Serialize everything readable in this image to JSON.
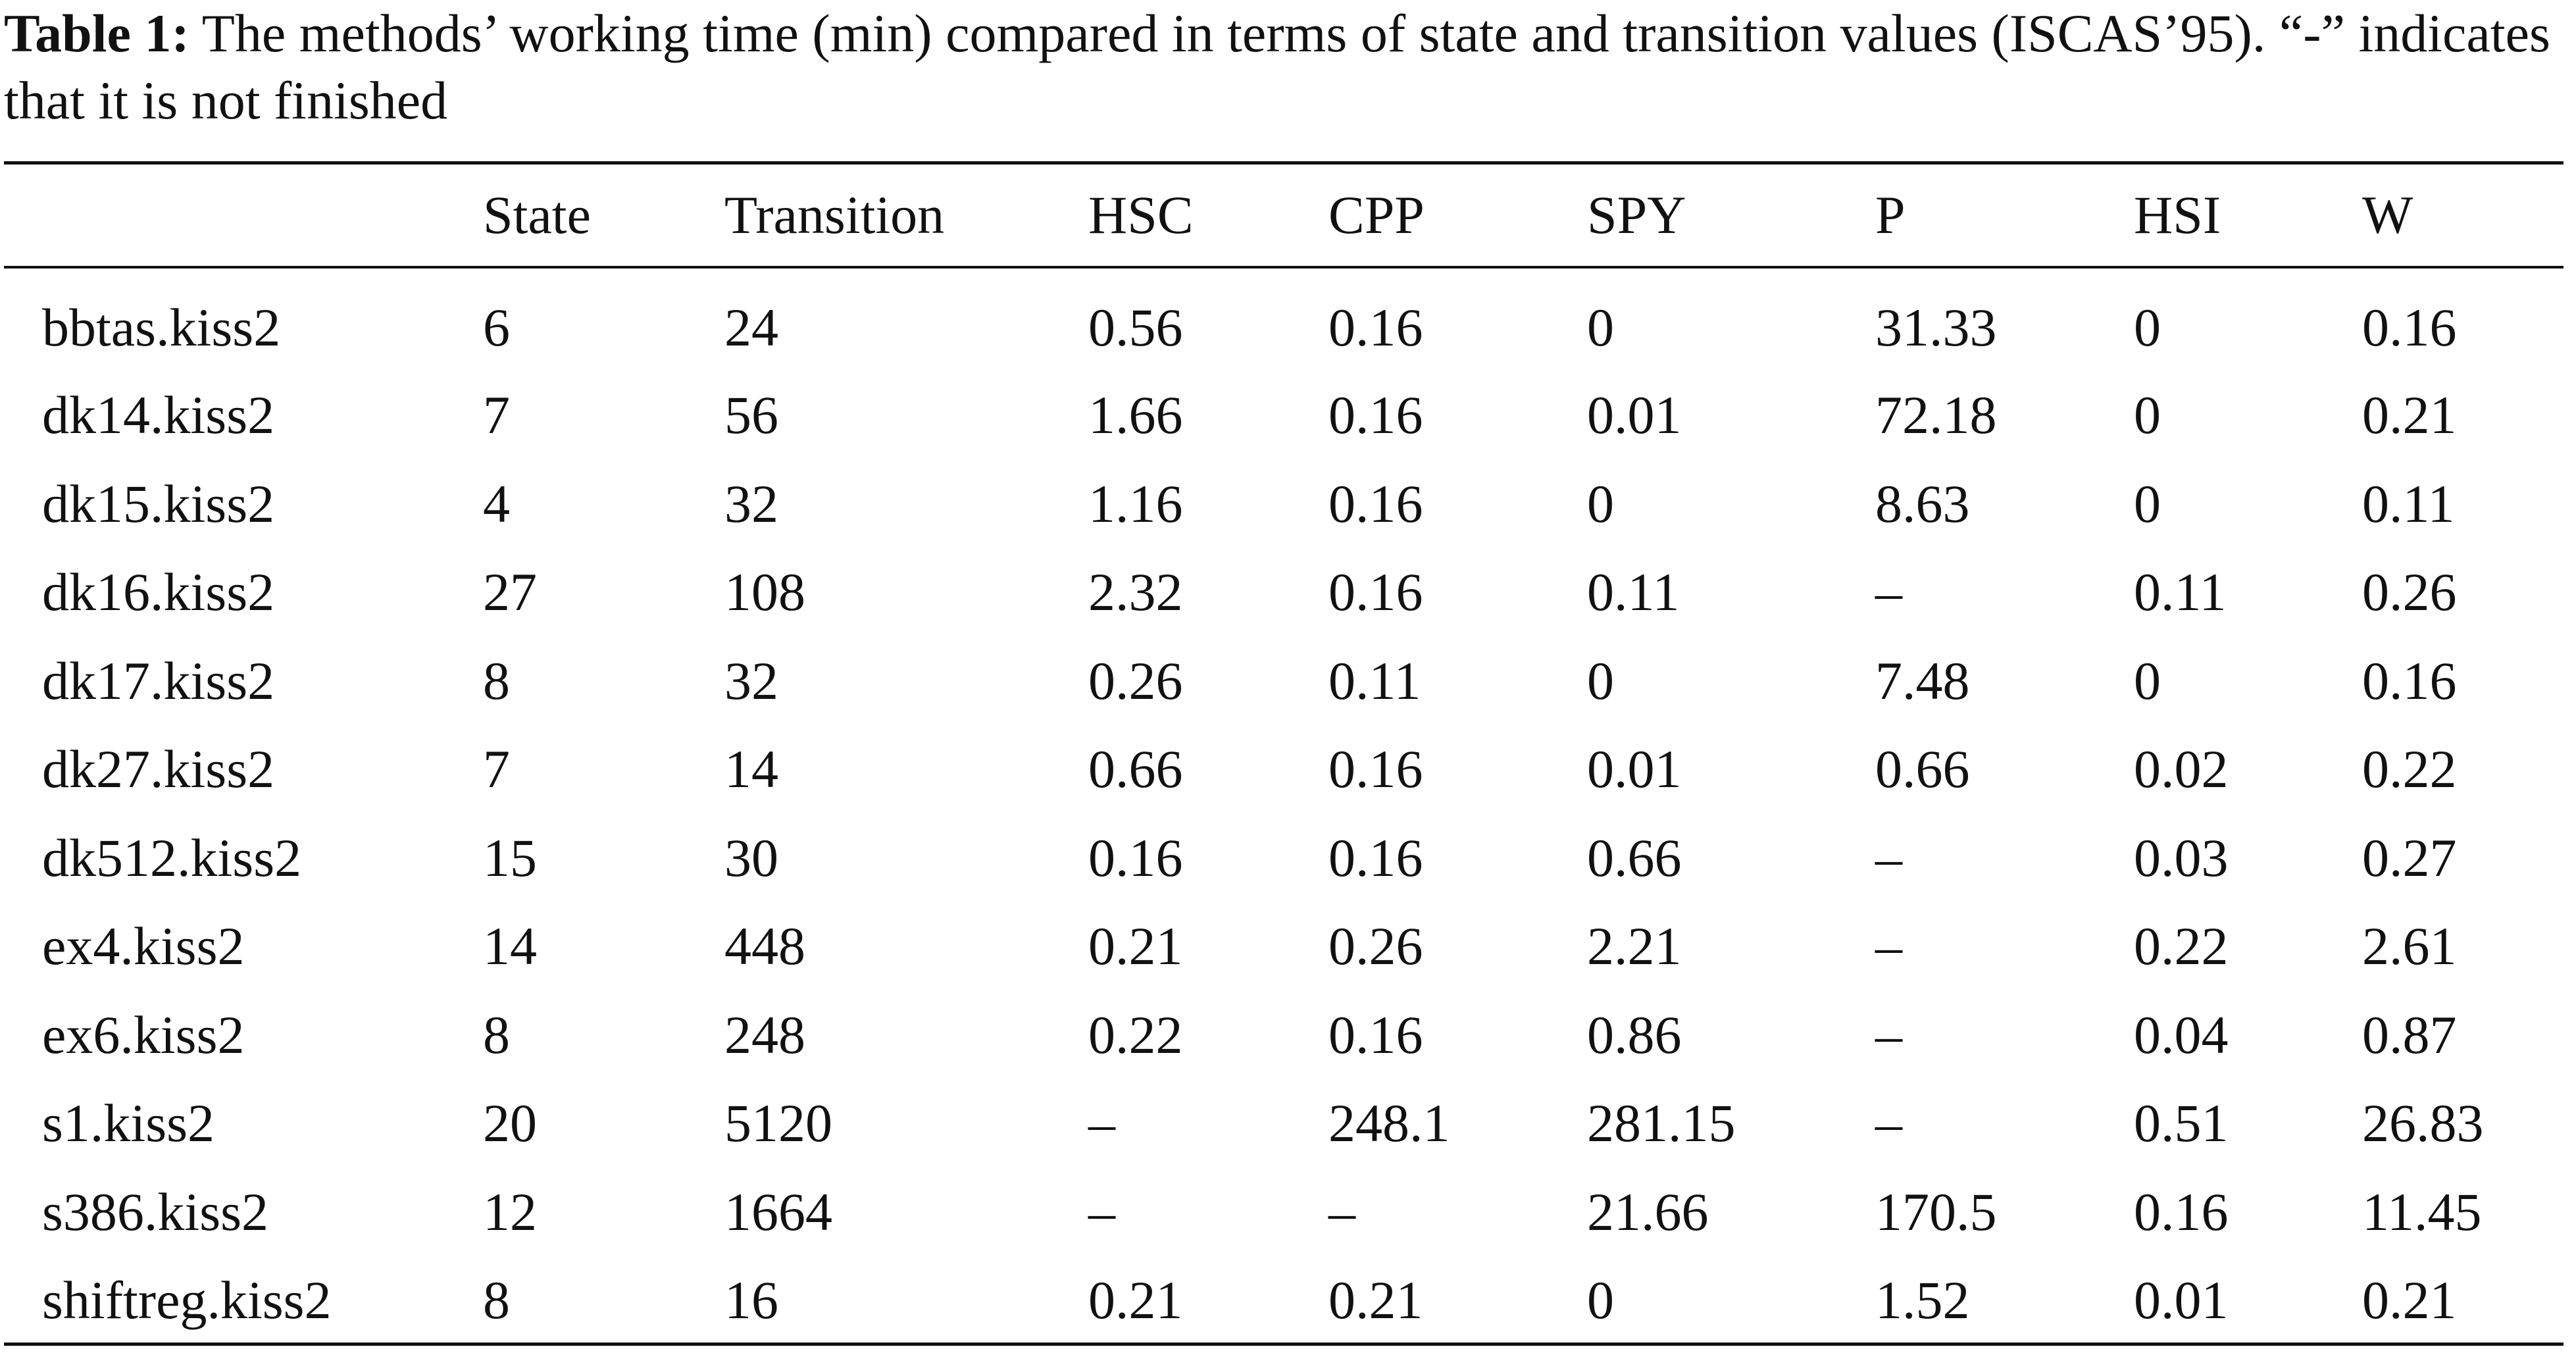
{
  "caption": {
    "label": "Table 1:",
    "text": "  The methods’ working time (min) compared in terms of state and transition values (ISCAS’95). “-” indicates that it is not finished"
  },
  "table": {
    "headers": [
      "",
      "State",
      "Transition",
      "HSC",
      "CPP",
      "SPY",
      "P",
      "HSI",
      "W"
    ],
    "rows": [
      [
        "bbtas.kiss2",
        "6",
        "24",
        "0.56",
        "0.16",
        "0",
        "31.33",
        "0",
        "0.16"
      ],
      [
        "dk14.kiss2",
        "7",
        "56",
        "1.66",
        "0.16",
        "0.01",
        "72.18",
        "0",
        "0.21"
      ],
      [
        "dk15.kiss2",
        "4",
        "32",
        "1.16",
        "0.16",
        "0",
        "8.63",
        "0",
        "0.11"
      ],
      [
        "dk16.kiss2",
        "27",
        "108",
        "2.32",
        "0.16",
        "0.11",
        "–",
        "0.11",
        "0.26"
      ],
      [
        "dk17.kiss2",
        "8",
        "32",
        "0.26",
        "0.11",
        "0",
        "7.48",
        "0",
        "0.16"
      ],
      [
        "dk27.kiss2",
        "7",
        "14",
        "0.66",
        "0.16",
        "0.01",
        "0.66",
        "0.02",
        "0.22"
      ],
      [
        "dk512.kiss2",
        "15",
        "30",
        "0.16",
        "0.16",
        "0.66",
        "–",
        "0.03",
        "0.27"
      ],
      [
        "ex4.kiss2",
        "14",
        "448",
        "0.21",
        "0.26",
        "2.21",
        "–",
        "0.22",
        "2.61"
      ],
      [
        "ex6.kiss2",
        "8",
        "248",
        "0.22",
        "0.16",
        "0.86",
        "–",
        "0.04",
        "0.87"
      ],
      [
        "s1.kiss2",
        "20",
        "5120",
        "–",
        "248.1",
        "281.15",
        "–",
        "0.51",
        "26.83"
      ],
      [
        "s386.kiss2",
        "12",
        "1664",
        "–",
        "–",
        "21.66",
        "170.5",
        "0.16",
        "11.45"
      ],
      [
        "shiftreg.kiss2",
        "8",
        "16",
        "0.21",
        "0.21",
        "0",
        "1.52",
        "0.01",
        "0.21"
      ]
    ]
  }
}
